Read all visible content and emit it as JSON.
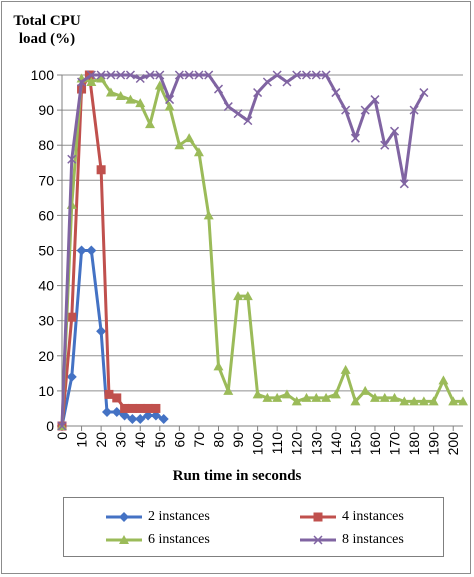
{
  "chart_data": {
    "type": "line",
    "ylabel_lines": [
      "Total CPU",
      "load (%)"
    ],
    "xlabel": "Run time in seconds",
    "ylim": [
      0,
      100
    ],
    "yticks": [
      0,
      10,
      20,
      30,
      40,
      50,
      60,
      70,
      80,
      90,
      100
    ],
    "xlim": [
      0,
      205
    ],
    "xticks": [
      0,
      10,
      20,
      30,
      40,
      50,
      60,
      70,
      80,
      90,
      100,
      110,
      120,
      130,
      140,
      150,
      160,
      170,
      180,
      190,
      200
    ],
    "grid": "horizontal",
    "legend_position": "bottom",
    "series": [
      {
        "name": "2 instances",
        "color": "#4472c4",
        "marker": "diamond",
        "x": [
          0,
          5,
          10,
          15,
          20,
          23,
          28,
          32,
          36,
          40,
          44,
          48,
          52
        ],
        "y": [
          0,
          14,
          50,
          50,
          27,
          4,
          4,
          3,
          2,
          2,
          3,
          3,
          2
        ]
      },
      {
        "name": "4 instances",
        "color": "#c0504d",
        "marker": "square",
        "x": [
          0,
          5,
          10,
          14,
          20,
          24,
          28,
          32,
          36,
          40,
          44,
          48
        ],
        "y": [
          0,
          31,
          96,
          100,
          73,
          9,
          8,
          5,
          5,
          5,
          5,
          5
        ]
      },
      {
        "name": "6 instances",
        "color": "#9bbb59",
        "marker": "triangle",
        "x": [
          0,
          5,
          10,
          15,
          20,
          25,
          30,
          35,
          40,
          45,
          50,
          55,
          60,
          65,
          70,
          75,
          80,
          85,
          90,
          95,
          100,
          105,
          110,
          115,
          120,
          125,
          130,
          135,
          140,
          145,
          150,
          155,
          160,
          165,
          170,
          175,
          180,
          185,
          190,
          195,
          200,
          205
        ],
        "y": [
          0,
          63,
          99,
          98,
          99,
          95,
          94,
          93,
          92,
          86,
          97,
          91,
          80,
          82,
          78,
          60,
          17,
          10,
          37,
          37,
          9,
          8,
          8,
          9,
          7,
          8,
          8,
          8,
          9,
          16,
          7,
          10,
          8,
          8,
          8,
          7,
          7,
          7,
          7,
          13,
          7,
          7
        ]
      },
      {
        "name": "8 instances",
        "color": "#8064a2",
        "marker": "x",
        "x": [
          0,
          5,
          10,
          15,
          20,
          25,
          30,
          35,
          40,
          45,
          50,
          55,
          60,
          65,
          70,
          75,
          80,
          85,
          90,
          95,
          100,
          105,
          110,
          115,
          120,
          125,
          130,
          135,
          140,
          145,
          150,
          155,
          160,
          165,
          170,
          175,
          180,
          185
        ],
        "y": [
          0,
          76,
          98,
          100,
          100,
          100,
          100,
          100,
          99,
          100,
          100,
          93,
          100,
          100,
          100,
          100,
          96,
          91,
          89,
          87,
          95,
          98,
          100,
          98,
          100,
          100,
          100,
          100,
          95,
          90,
          82,
          90,
          93,
          80,
          84,
          69,
          90,
          95
        ]
      }
    ]
  }
}
